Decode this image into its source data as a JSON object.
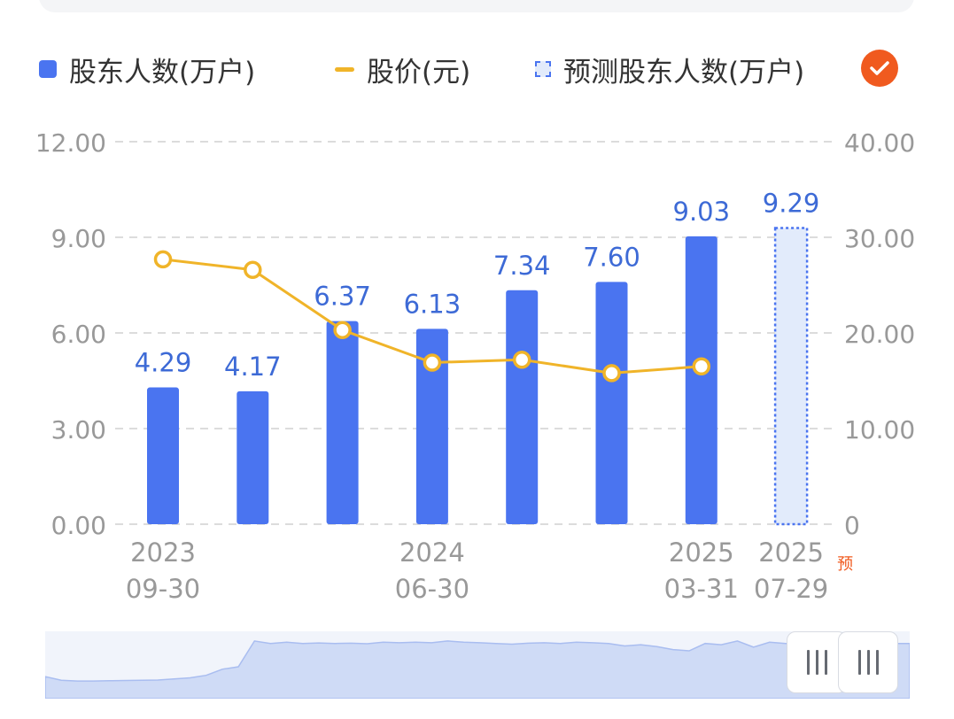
{
  "legend": {
    "holders_label": "股东人数(万户)",
    "price_label": "股价(元)",
    "forecast_label": "预测股东人数(万户)"
  },
  "colors": {
    "bar": "#4a74f0",
    "line": "#f0b429",
    "forecast_fill": "#e2ebfb",
    "label": "#3d6ad6",
    "axis_text": "#999999",
    "toggle": "#f05a1f"
  },
  "chart_data": {
    "type": "bar",
    "categories": [
      "2023-09-30",
      "",
      "",
      "2024-06-30",
      "",
      "",
      "2025-03-31",
      "2025-07-29"
    ],
    "x_tick_labels": [
      {
        "index": 0,
        "year": "2023",
        "date": "09-30"
      },
      {
        "index": 3,
        "year": "2024",
        "date": "06-30"
      },
      {
        "index": 6,
        "year": "2025",
        "date": "03-31"
      },
      {
        "index": 7,
        "year": "2025",
        "date": "07-29",
        "note": "预"
      }
    ],
    "series": [
      {
        "name": "股东人数(万户)",
        "type": "bar",
        "axis": "left",
        "values": [
          4.29,
          4.17,
          6.37,
          6.13,
          7.34,
          7.6,
          9.03,
          null
        ],
        "labels": [
          "4.29",
          "4.17",
          "6.37",
          "6.13",
          "7.34",
          "7.60",
          "9.03",
          null
        ]
      },
      {
        "name": "股价(元)",
        "type": "line",
        "axis": "right",
        "values": [
          27.7,
          26.6,
          20.3,
          16.9,
          17.2,
          15.8,
          16.5,
          null
        ]
      },
      {
        "name": "预测股东人数(万户)",
        "type": "bar-forecast",
        "axis": "left",
        "values": [
          null,
          null,
          null,
          null,
          null,
          null,
          null,
          9.29
        ],
        "labels": [
          null,
          null,
          null,
          null,
          null,
          null,
          null,
          "9.29"
        ]
      }
    ],
    "y_left": {
      "min": 0,
      "max": 12,
      "ticks": [
        "0.00",
        "3.00",
        "6.00",
        "9.00",
        "12.00"
      ]
    },
    "y_right": {
      "min": 0,
      "max": 40,
      "ticks": [
        "0",
        "10.00",
        "20.00",
        "30.00",
        "40.00"
      ]
    },
    "grid": "dashed horizontal"
  },
  "navigator": {
    "overview_values": [
      0.9,
      0.75,
      0.72,
      0.72,
      0.73,
      0.74,
      0.75,
      0.76,
      0.8,
      0.85,
      0.95,
      1.2,
      1.3,
      2.35,
      2.25,
      2.3,
      2.25,
      2.27,
      2.25,
      2.26,
      2.24,
      2.3,
      2.28,
      2.3,
      2.28,
      2.35,
      2.3,
      2.28,
      2.25,
      2.22,
      2.26,
      2.28,
      2.25,
      2.3,
      2.28,
      2.25,
      2.15,
      2.2,
      2.12,
      2.0,
      1.95,
      2.25,
      2.2,
      2.35,
      2.1,
      2.3,
      2.25
    ]
  }
}
